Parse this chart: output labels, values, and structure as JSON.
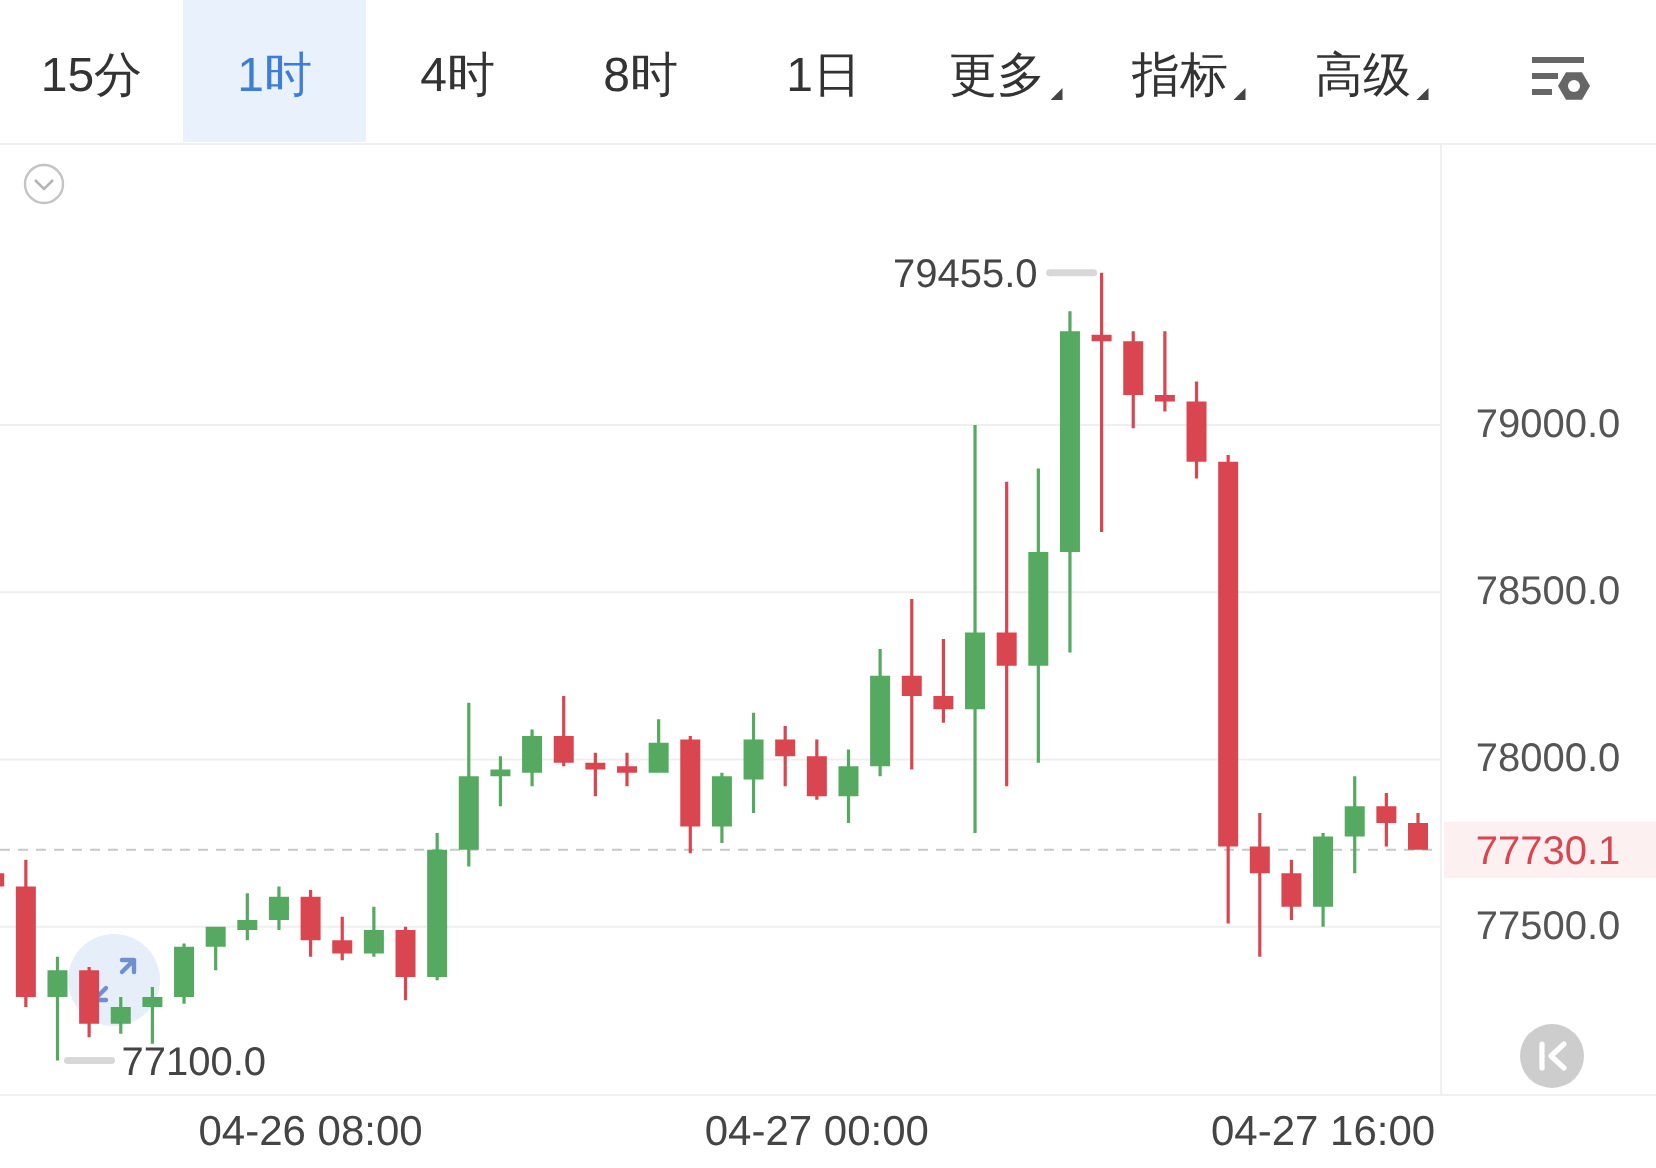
{
  "chart_data": {
    "type": "candlestick",
    "annotations": [
      "15分",
      "1时",
      "4时",
      "8时",
      "1日",
      "更多",
      "指标",
      "高级",
      "79455.0",
      "77100.0"
    ],
    "categories": [
      null,
      null,
      null,
      null,
      null,
      null,
      null,
      null,
      null,
      null,
      "04-26 08:00",
      null,
      null,
      null,
      null,
      null,
      null,
      null,
      null,
      null,
      null,
      null,
      null,
      null,
      null,
      null,
      "04-27 00:00",
      null,
      null,
      null,
      null,
      null,
      null,
      null,
      null,
      null,
      null,
      null,
      null,
      null,
      null,
      null,
      "04-27 16:00",
      null,
      null,
      null
    ],
    "ohlc": [
      [
        77660,
        77660,
        77620,
        77620
      ],
      [
        77620,
        77700,
        77260,
        77290
      ],
      [
        77290,
        77410,
        77100,
        77370
      ],
      [
        77370,
        77380,
        77170,
        77210
      ],
      [
        77210,
        77290,
        77180,
        77260
      ],
      [
        77260,
        77320,
        77150,
        77290
      ],
      [
        77290,
        77450,
        77270,
        77440
      ],
      [
        77440,
        77500,
        77370,
        77500
      ],
      [
        77490,
        77600,
        77460,
        77520
      ],
      [
        77520,
        77620,
        77490,
        77590
      ],
      [
        77590,
        77610,
        77410,
        77460
      ],
      [
        77460,
        77530,
        77400,
        77420
      ],
      [
        77420,
        77560,
        77410,
        77490
      ],
      [
        77490,
        77500,
        77280,
        77350
      ],
      [
        77350,
        77780,
        77340,
        77730
      ],
      [
        77730,
        78170,
        77680,
        77950
      ],
      [
        77950,
        78010,
        77860,
        77970
      ],
      [
        77960,
        78090,
        77920,
        78070
      ],
      [
        78070,
        78190,
        77980,
        77990
      ],
      [
        77990,
        78020,
        77890,
        77970
      ],
      [
        77980,
        78020,
        77920,
        77960
      ],
      [
        77960,
        78120,
        77960,
        78050
      ],
      [
        78060,
        78070,
        77720,
        77800
      ],
      [
        77800,
        77960,
        77750,
        77950
      ],
      [
        77940,
        78140,
        77840,
        78060
      ],
      [
        78060,
        78100,
        77920,
        78010
      ],
      [
        78010,
        78060,
        77880,
        77890
      ],
      [
        77890,
        78030,
        77810,
        77980
      ],
      [
        77980,
        78330,
        77950,
        78250
      ],
      [
        78250,
        78480,
        77970,
        78190
      ],
      [
        78190,
        78360,
        78110,
        78150
      ],
      [
        78150,
        79000,
        77780,
        78380
      ],
      [
        78380,
        78830,
        77920,
        78280
      ],
      [
        78280,
        78870,
        77990,
        78620
      ],
      [
        78620,
        79340,
        78320,
        79280
      ],
      [
        79270,
        79455,
        78680,
        79250
      ],
      [
        79250,
        79280,
        78990,
        79090
      ],
      [
        79090,
        79280,
        79040,
        79070
      ],
      [
        79070,
        79130,
        78840,
        78890
      ],
      [
        78890,
        78910,
        77510,
        77740
      ],
      [
        77740,
        77840,
        77410,
        77660
      ],
      [
        77660,
        77700,
        77520,
        77560
      ],
      [
        77560,
        77780,
        77500,
        77770
      ],
      [
        77770,
        77950,
        77660,
        77860
      ],
      [
        77860,
        77900,
        77740,
        77810
      ],
      [
        77810,
        77840,
        77730.1,
        77730.1
      ]
    ],
    "colors": [
      "#d9464f",
      "#d9464f",
      "#55a960",
      "#d9464f",
      "#55a960",
      "#55a960",
      "#55a960",
      "#55a960",
      "#55a960",
      "#55a960",
      "#d9464f",
      "#d9464f",
      "#55a960",
      "#d9464f",
      "#55a960",
      "#55a960",
      "#55a960",
      "#55a960",
      "#d9464f",
      "#d9464f",
      "#d9464f",
      "#55a960",
      "#d9464f",
      "#55a960",
      "#55a960",
      "#d9464f",
      "#d9464f",
      "#55a960",
      "#55a960",
      "#d9464f",
      "#d9464f",
      "#55a960",
      "#d9464f",
      "#55a960",
      "#55a960",
      "#d9464f",
      "#d9464f",
      "#d9464f",
      "#d9464f",
      "#d9464f",
      "#d9464f",
      "#d9464f",
      "#55a960",
      "#55a960",
      "#d9464f",
      "#d9464f"
    ],
    "ylim": [
      77000,
      79840
    ],
    "yticks": [
      {
        "value": 77500,
        "label": "77500.0"
      },
      {
        "value": 78000,
        "label": "78000.0"
      },
      {
        "value": 78500,
        "label": "78500.0"
      },
      {
        "value": 79000,
        "label": "79000.0"
      }
    ],
    "grid": "y",
    "ref_lines": [
      {
        "axis": "y",
        "value": 77730.1,
        "label": "77730.1",
        "line_style": "dashed"
      }
    ]
  }
}
